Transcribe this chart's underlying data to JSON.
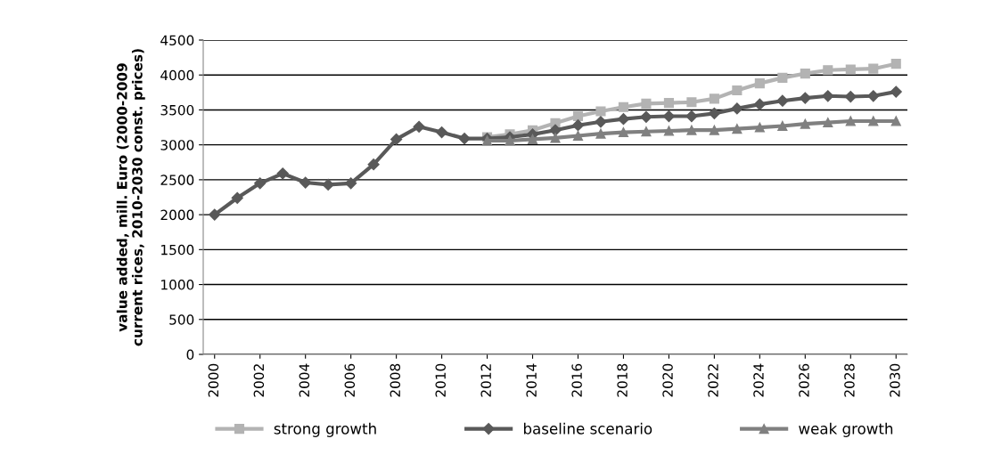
{
  "chart_data": {
    "type": "line",
    "ylabel": "value added, mill. Euro (2000-2009\ncurrent rices, 2010-2030 const. prices)",
    "xlim": [
      1999.5,
      2030.5
    ],
    "xticks": [
      2000,
      2002,
      2004,
      2006,
      2008,
      2010,
      2012,
      2014,
      2016,
      2018,
      2020,
      2022,
      2024,
      2026,
      2028,
      2030
    ],
    "ylim": [
      0,
      4500
    ],
    "yticks": [
      0,
      500,
      1000,
      1500,
      2000,
      2500,
      3000,
      3500,
      4000,
      4500
    ],
    "grid": "y",
    "legend": "bottom",
    "series": [
      {
        "name": "strong growth",
        "color": "#b3b3b3",
        "marker": "square",
        "x": [
          2012,
          2013,
          2014,
          2015,
          2016,
          2017,
          2018,
          2019,
          2020,
          2021,
          2022,
          2023,
          2024,
          2025,
          2026,
          2027,
          2028,
          2029,
          2030
        ],
        "values": [
          3110,
          3150,
          3210,
          3310,
          3410,
          3480,
          3540,
          3590,
          3600,
          3610,
          3660,
          3780,
          3880,
          3960,
          4020,
          4070,
          4080,
          4090,
          4160
        ]
      },
      {
        "name": "baseline scenario",
        "color": "#595959",
        "marker": "diamond",
        "x": [
          2000,
          2001,
          2002,
          2003,
          2004,
          2005,
          2006,
          2007,
          2008,
          2009,
          2010,
          2011,
          2012,
          2013,
          2014,
          2015,
          2016,
          2017,
          2018,
          2019,
          2020,
          2021,
          2022,
          2023,
          2024,
          2025,
          2026,
          2027,
          2028,
          2029,
          2030
        ],
        "values": [
          2000,
          2240,
          2450,
          2590,
          2460,
          2430,
          2450,
          2720,
          3080,
          3260,
          3180,
          3090,
          3090,
          3110,
          3150,
          3210,
          3280,
          3330,
          3370,
          3400,
          3410,
          3410,
          3450,
          3520,
          3580,
          3630,
          3670,
          3700,
          3690,
          3700,
          3760
        ]
      },
      {
        "name": "weak growth",
        "color": "#808080",
        "marker": "triangle",
        "x": [
          2012,
          2013,
          2014,
          2015,
          2016,
          2017,
          2018,
          2019,
          2020,
          2021,
          2022,
          2023,
          2024,
          2025,
          2026,
          2027,
          2028,
          2029,
          2030
        ],
        "values": [
          3060,
          3060,
          3080,
          3100,
          3130,
          3160,
          3180,
          3190,
          3200,
          3210,
          3210,
          3230,
          3250,
          3270,
          3300,
          3320,
          3340,
          3340,
          3340
        ]
      }
    ]
  }
}
